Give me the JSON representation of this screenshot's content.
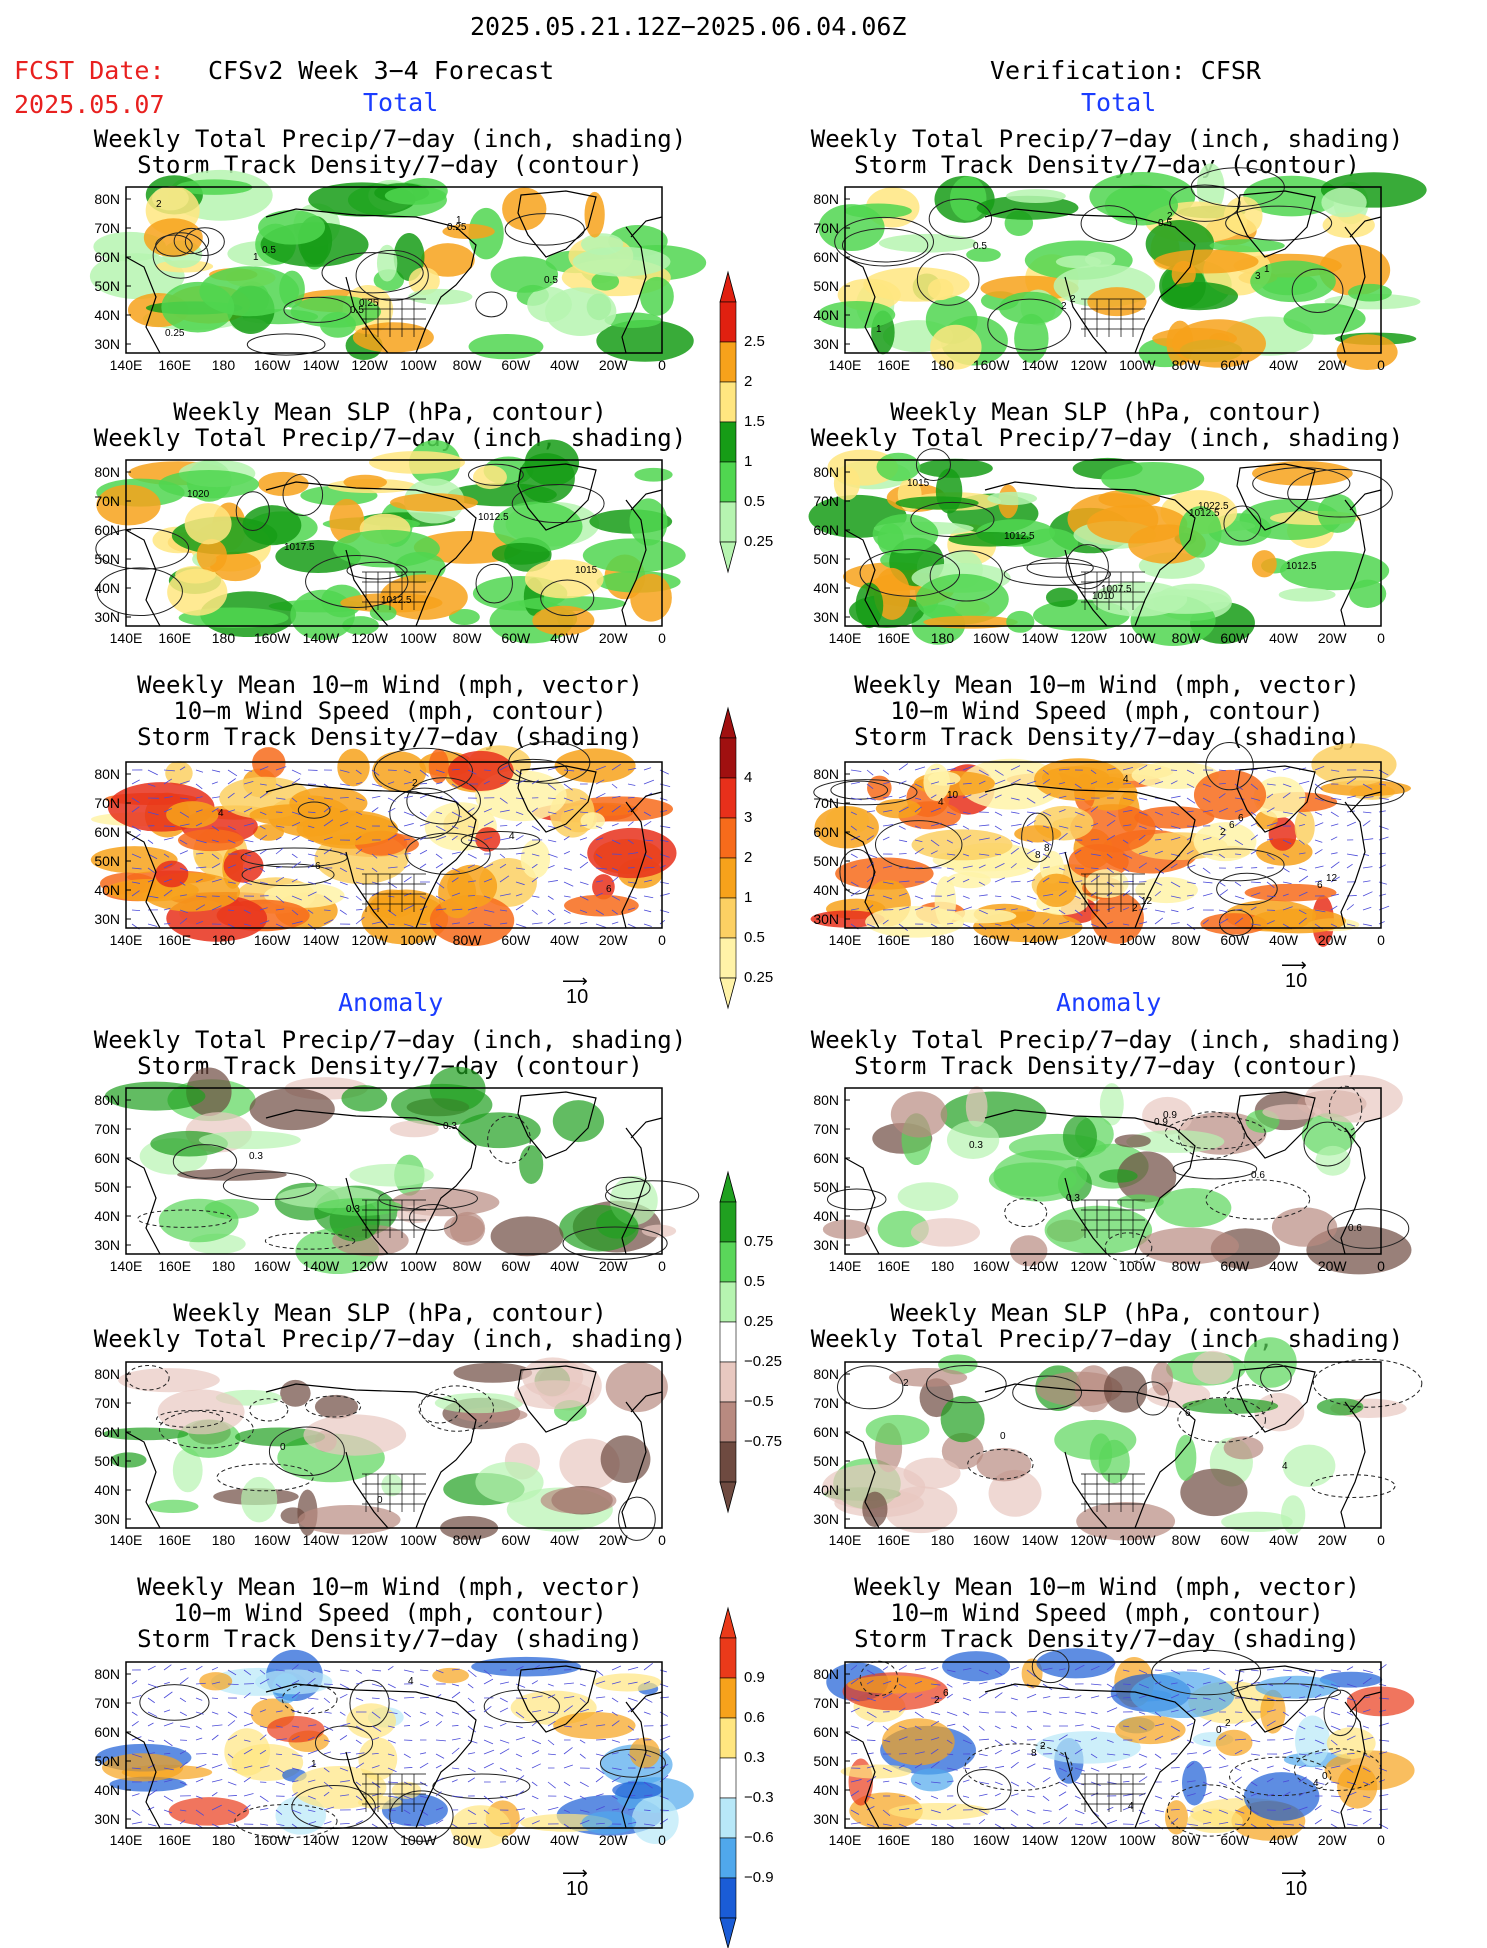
{
  "header": {
    "date_range": "2025.05.21.12Z−2025.06.04.06Z",
    "fcst_label": "FCST Date:",
    "fcst_date": "2025.05.07",
    "left_title": "CFSv2 Week 3−4 Forecast",
    "right_title": "Verification: CFSR"
  },
  "section_labels": {
    "total": "Total",
    "anomaly": "Anomaly"
  },
  "panel_titles": {
    "precip_storm": [
      "Weekly Total Precip/7−day (inch, shading)",
      "Storm Track Density/7−day (contour)"
    ],
    "slp_precip": [
      "Weekly Mean SLP (hPa, contour)",
      "Weekly Total Precip/7−day (inch, shading)"
    ],
    "wind": [
      "Weekly Mean 10−m Wind (mph, vector)",
      "10−m Wind Speed (mph, contour)",
      "Storm Track Density/7−day (shading)"
    ]
  },
  "axes": {
    "lat_labels": [
      "80N",
      "70N",
      "60N",
      "50N",
      "40N",
      "30N"
    ],
    "lon_labels": [
      "140E",
      "160E",
      "180",
      "160W",
      "140W",
      "120W",
      "100W",
      "80W",
      "60W",
      "40W",
      "20W",
      "0"
    ]
  },
  "vector_ref": "10",
  "colorbars": {
    "precip_total": {
      "labels": [
        "2.5",
        "2",
        "1.5",
        "1",
        "0.5",
        "0.25"
      ],
      "colors": [
        "#e02010",
        "#f7a21b",
        "#ffe680",
        "#169c16",
        "#50d650",
        "#b6f4b0"
      ]
    },
    "storm_total": {
      "labels": [
        "4",
        "3",
        "2",
        "1",
        "0.5",
        "0.25"
      ],
      "colors": [
        "#a01010",
        "#e8301b",
        "#f76b1b",
        "#f7a21b",
        "#fcd063",
        "#fff3a8"
      ]
    },
    "precip_anom": {
      "labels": [
        "0.75",
        "0.5",
        "0.25",
        "−0.25",
        "−0.5",
        "−0.75"
      ],
      "colors": [
        "#20a020",
        "#5ad65a",
        "#b6f4b0",
        "#ffffff",
        "#e8c8c0",
        "#b88a80",
        "#6e4a40"
      ]
    },
    "storm_anom": {
      "labels": [
        "0.9",
        "0.6",
        "0.3",
        "−0.3",
        "−0.6",
        "−0.9"
      ],
      "colors": [
        "#ea3a1a",
        "#f7a21b",
        "#ffe680",
        "#ffffff",
        "#b8e8f8",
        "#50a8ec",
        "#1a5cd6"
      ]
    }
  },
  "contour_labels": {
    "L1": [
      "2",
      "1",
      "0.5",
      "0.25",
      "0.5",
      "0.25",
      "0.5",
      "0.25",
      "1"
    ],
    "R1": [
      "2",
      "0.5",
      "3",
      "1",
      "0.5",
      "2",
      "2",
      "1"
    ],
    "L2": [
      "1020",
      "1017.5",
      "1012.5",
      "1012.5",
      "1015"
    ],
    "R2": [
      "1010",
      "1012.5",
      "1012.5",
      "1015",
      "1012.5",
      "1007.5",
      "1022.5"
    ],
    "L3": [
      "4",
      "6",
      "2",
      "4",
      "6"
    ],
    "R3": [
      "4",
      "2",
      "6",
      "4",
      "8",
      "2",
      "6",
      "12",
      "10",
      "8",
      "12",
      "6"
    ],
    "L4": [
      "0.3",
      "0.3",
      "0.3"
    ],
    "R4": [
      "0.9",
      "0.6",
      "0.6",
      "0.3",
      "0.3",
      "0.9"
    ],
    "L5": [
      "0",
      "0"
    ],
    "R5": [
      "6",
      "4",
      "2",
      "0"
    ],
    "L6": [
      "1",
      "4"
    ],
    "R6": [
      "0",
      "4",
      "2",
      "8",
      "4",
      "2",
      "0",
      "6",
      "2"
    ]
  }
}
